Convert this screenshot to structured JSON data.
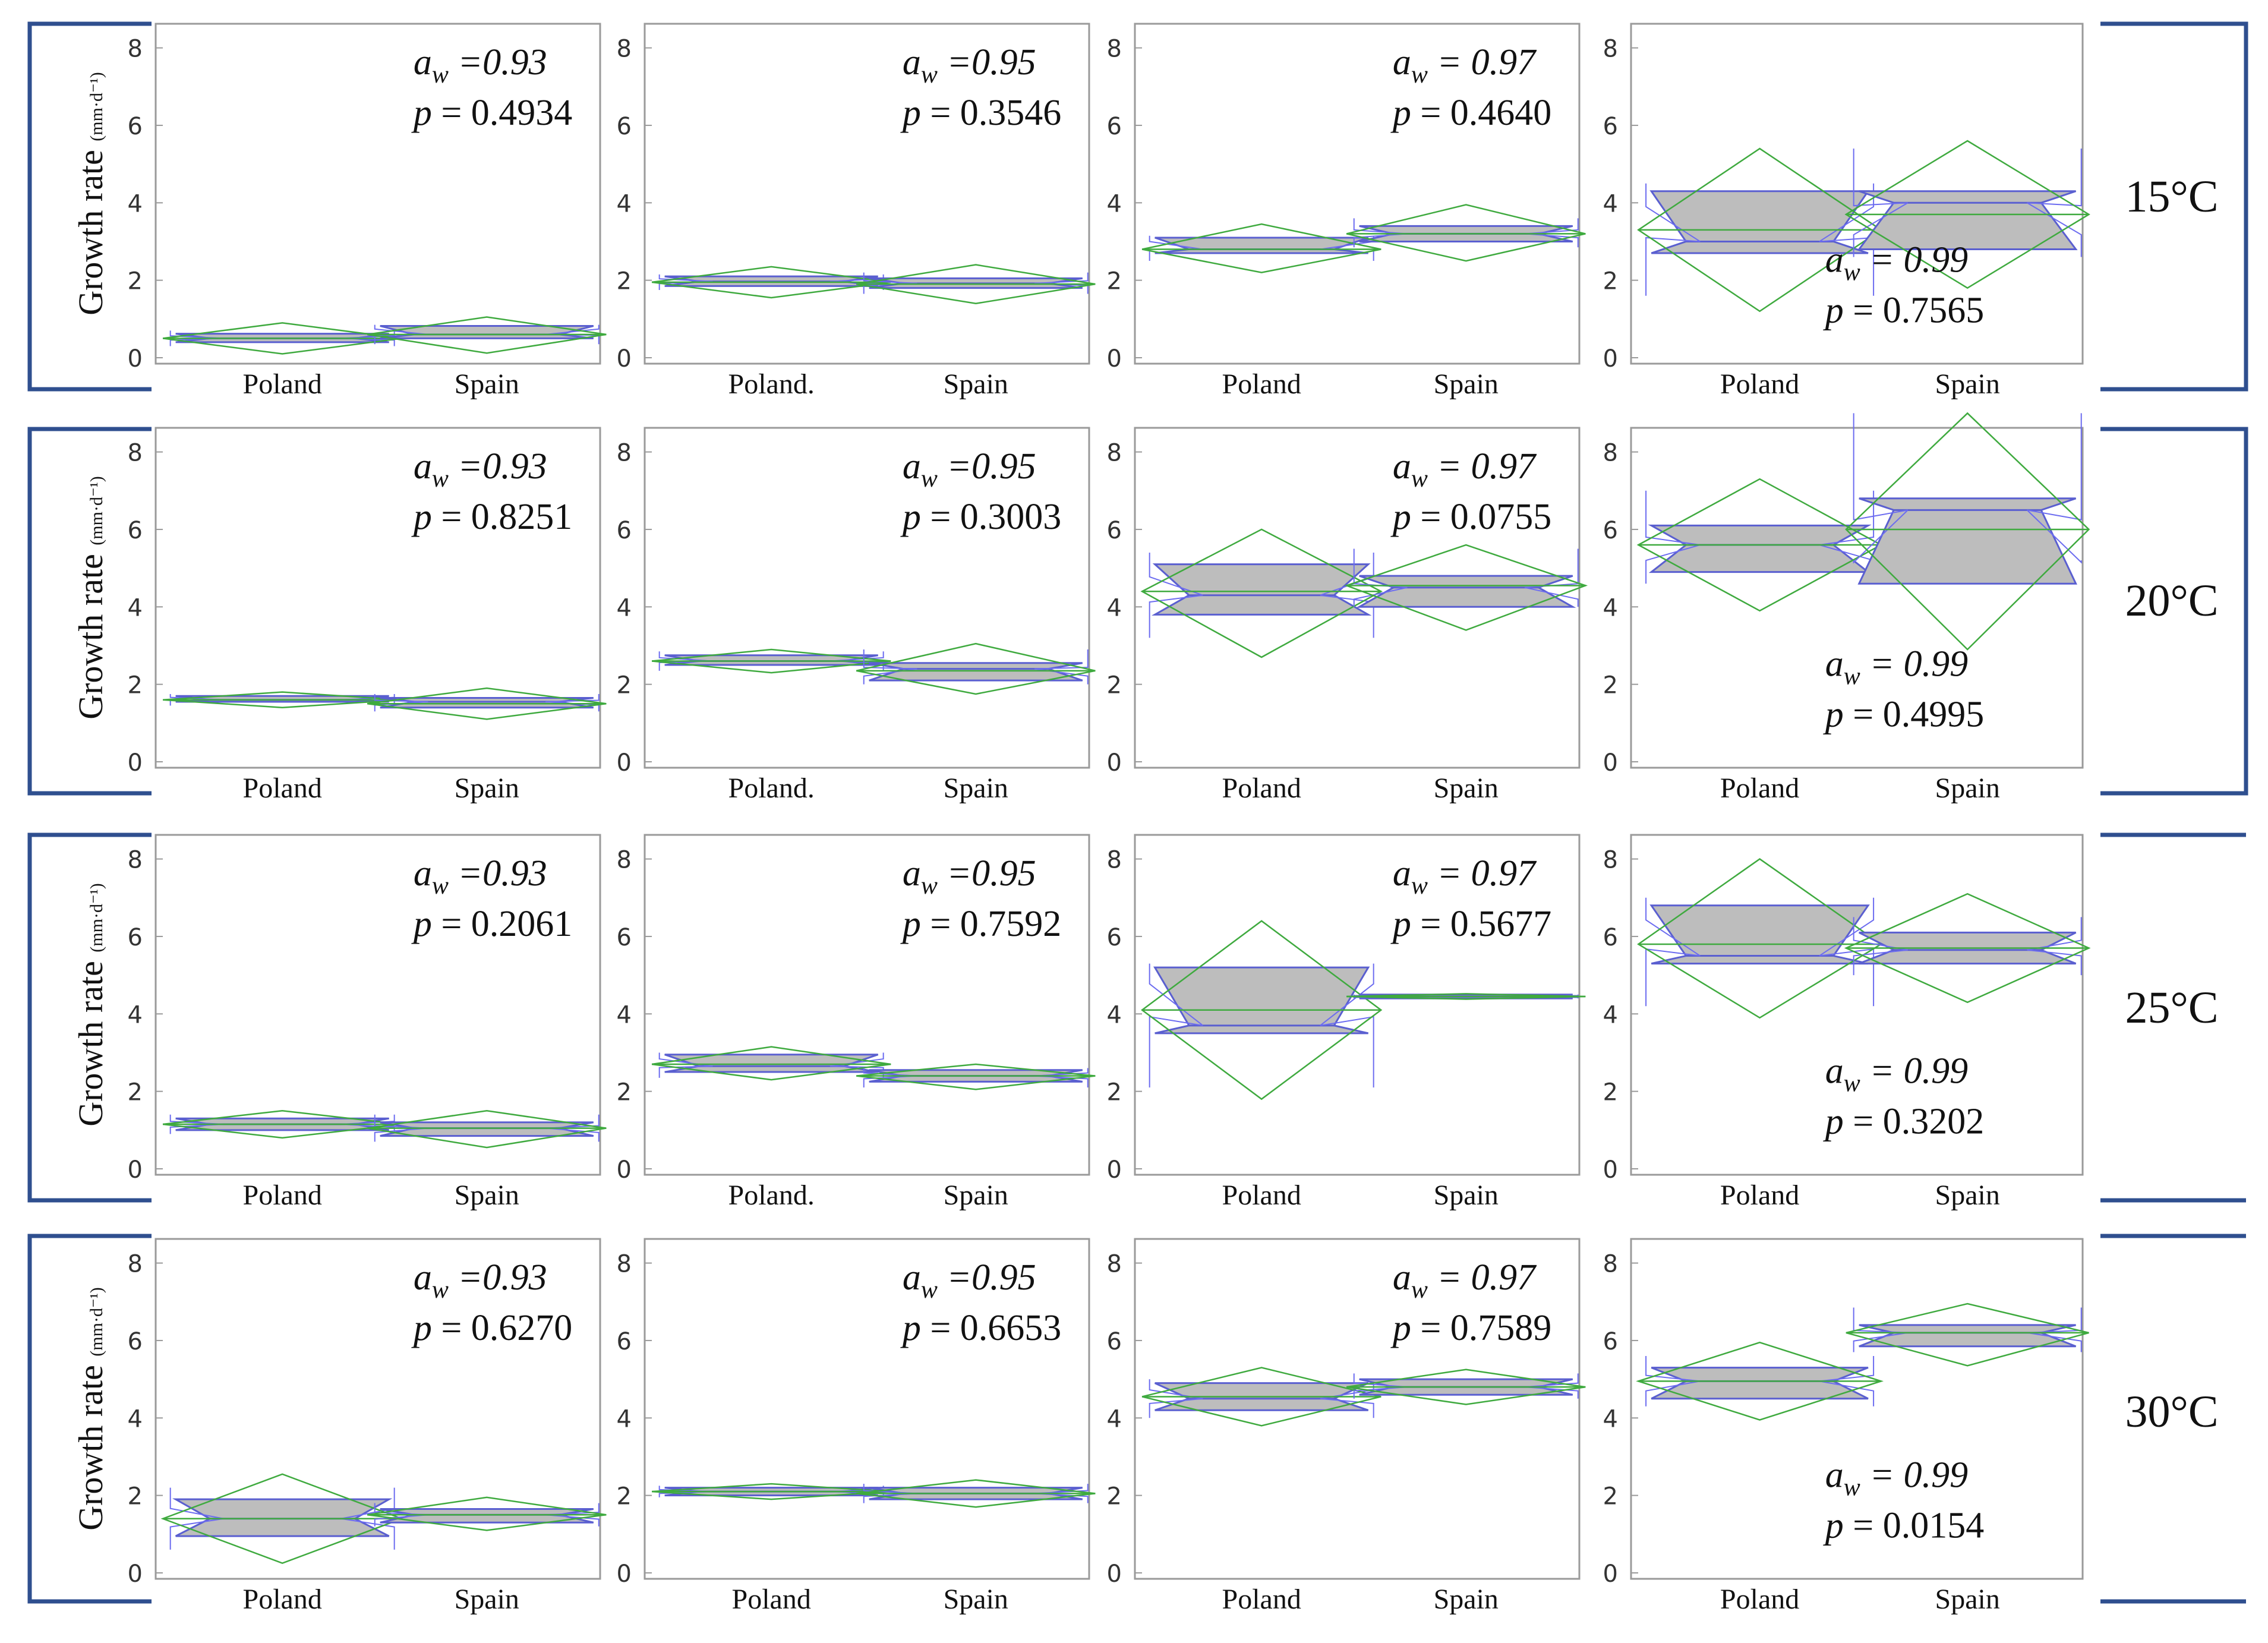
{
  "figure": {
    "y_axis_label": "Growth rate",
    "y_axis_unit": "(mm·d⁻¹)",
    "row_labels": [
      "15°C",
      "20°C",
      "25°C",
      "30°C"
    ],
    "colors": {
      "frame": "#2f4f8f",
      "panel_border": "#9a9a9a",
      "box_fill": "#bdbdbd",
      "box_stroke": "#5a5fd0",
      "diamond": "#3faa3f",
      "whisker": "#6c6cf0",
      "text": "#111111",
      "tick_text": "#333333"
    }
  },
  "chart_data": [
    {
      "type": "box",
      "row": "15°C",
      "aw": "0.93",
      "aw_text": "=0.93",
      "p_text": "= 0.4934",
      "categories": [
        "Poland",
        "Spain"
      ],
      "ylim": [
        0,
        8.5
      ],
      "yticks": [
        0,
        2,
        4,
        6,
        8
      ],
      "groups": [
        {
          "mean": 0.5,
          "q1": 0.4,
          "median": 0.5,
          "q3": 0.62,
          "ci": [
            0.1,
            0.9
          ],
          "whisker": [
            0.3,
            0.7
          ]
        },
        {
          "mean": 0.6,
          "q1": 0.5,
          "median": 0.6,
          "q3": 0.82,
          "ci": [
            0.12,
            1.05
          ],
          "whisker": [
            0.35,
            0.85
          ]
        }
      ]
    },
    {
      "type": "box",
      "row": "15°C",
      "aw": "0.95",
      "aw_text": "=0.95",
      "p_text": "= 0.3546",
      "categories": [
        "Poland.",
        "Spain"
      ],
      "ylim": [
        0,
        8.5
      ],
      "yticks": [
        0,
        2,
        4,
        6,
        8
      ],
      "groups": [
        {
          "mean": 1.95,
          "q1": 1.85,
          "median": 1.97,
          "q3": 2.1,
          "ci": [
            1.55,
            2.35
          ],
          "whisker": [
            1.75,
            2.15
          ]
        },
        {
          "mean": 1.9,
          "q1": 1.8,
          "median": 1.92,
          "q3": 2.05,
          "ci": [
            1.4,
            2.4
          ],
          "whisker": [
            1.65,
            2.2
          ]
        }
      ]
    },
    {
      "type": "box",
      "row": "15°C",
      "aw": "0.97",
      "aw_text": "= 0.97",
      "p_text": "= 0.4640",
      "categories": [
        "Poland",
        "Spain"
      ],
      "ylim": [
        0,
        8.5
      ],
      "yticks": [
        0,
        2,
        4,
        6,
        8
      ],
      "groups": [
        {
          "mean": 2.8,
          "q1": 2.7,
          "median": 2.8,
          "q3": 3.1,
          "ci": [
            2.2,
            3.45
          ],
          "whisker": [
            2.5,
            3.15
          ]
        },
        {
          "mean": 3.2,
          "q1": 3.0,
          "median": 3.2,
          "q3": 3.4,
          "ci": [
            2.5,
            3.95
          ],
          "whisker": [
            2.85,
            3.6
          ]
        }
      ]
    },
    {
      "type": "box",
      "row": "15°C",
      "aw": "0.99",
      "aw_text": "= 0.99",
      "p_text": "= 0.7565",
      "categories": [
        "Poland",
        "Spain"
      ],
      "ylim": [
        0,
        8.5
      ],
      "yticks": [
        0,
        2,
        4,
        6,
        8
      ],
      "groups": [
        {
          "mean": 3.3,
          "q1": 2.7,
          "median": 3.0,
          "q3": 4.3,
          "ci": [
            1.2,
            5.4
          ],
          "whisker": [
            1.6,
            4.5
          ]
        },
        {
          "mean": 3.7,
          "q1": 2.8,
          "median": 4.0,
          "q3": 4.3,
          "ci": [
            1.8,
            5.6
          ],
          "whisker": [
            2.6,
            5.4
          ]
        }
      ]
    },
    {
      "type": "box",
      "row": "20°C",
      "aw": "0.93",
      "aw_text": "=0.93",
      "p_text": "= 0.8251",
      "categories": [
        "Poland",
        "Spain"
      ],
      "ylim": [
        0,
        8.5
      ],
      "yticks": [
        0,
        2,
        4,
        6,
        8
      ],
      "groups": [
        {
          "mean": 1.6,
          "q1": 1.55,
          "median": 1.6,
          "q3": 1.7,
          "ci": [
            1.4,
            1.8
          ],
          "whisker": [
            1.45,
            1.75
          ]
        },
        {
          "mean": 1.5,
          "q1": 1.4,
          "median": 1.55,
          "q3": 1.65,
          "ci": [
            1.1,
            1.9
          ],
          "whisker": [
            1.3,
            1.75
          ]
        }
      ]
    },
    {
      "type": "box",
      "row": "20°C",
      "aw": "0.95",
      "aw_text": "=0.95",
      "p_text": "= 0.3003",
      "categories": [
        "Poland.",
        "Spain"
      ],
      "ylim": [
        0,
        8.5
      ],
      "yticks": [
        0,
        2,
        4,
        6,
        8
      ],
      "groups": [
        {
          "mean": 2.6,
          "q1": 2.5,
          "median": 2.6,
          "q3": 2.75,
          "ci": [
            2.3,
            2.9
          ],
          "whisker": [
            2.35,
            2.85
          ]
        },
        {
          "mean": 2.35,
          "q1": 2.1,
          "median": 2.4,
          "q3": 2.55,
          "ci": [
            1.75,
            3.05
          ],
          "whisker": [
            2.0,
            2.9
          ]
        }
      ]
    },
    {
      "type": "box",
      "row": "20°C",
      "aw": "0.97",
      "aw_text": "= 0.97",
      "p_text": "= 0.0755",
      "categories": [
        "Poland",
        "Spain"
      ],
      "ylim": [
        0,
        8.5
      ],
      "yticks": [
        0,
        2,
        4,
        6,
        8
      ],
      "groups": [
        {
          "mean": 4.4,
          "q1": 3.8,
          "median": 4.3,
          "q3": 5.1,
          "ci": [
            2.7,
            6.0
          ],
          "whisker": [
            3.2,
            5.4
          ]
        },
        {
          "mean": 4.55,
          "q1": 4.0,
          "median": 4.5,
          "q3": 4.8,
          "ci": [
            3.4,
            5.6
          ],
          "whisker": [
            4.0,
            5.5
          ]
        }
      ]
    },
    {
      "type": "box",
      "row": "20°C",
      "aw": "0.99",
      "aw_text": "= 0.99",
      "p_text": "= 0.4995",
      "categories": [
        "Poland",
        "Spain"
      ],
      "ylim": [
        0,
        8.5
      ],
      "yticks": [
        0,
        2,
        4,
        6,
        8
      ],
      "groups": [
        {
          "mean": 5.6,
          "q1": 4.9,
          "median": 5.6,
          "q3": 6.1,
          "ci": [
            3.9,
            7.3
          ],
          "whisker": [
            4.6,
            7.0
          ]
        },
        {
          "mean": 6.0,
          "q1": 4.6,
          "median": 6.5,
          "q3": 6.8,
          "ci": [
            2.9,
            9.0
          ],
          "whisker": [
            5.2,
            9.0
          ]
        }
      ]
    },
    {
      "type": "box",
      "row": "25°C",
      "aw": "0.93",
      "aw_text": "=0.93",
      "p_text": "= 0.2061",
      "categories": [
        "Poland",
        "Spain"
      ],
      "ylim": [
        0,
        8.5
      ],
      "yticks": [
        0,
        2,
        4,
        6,
        8
      ],
      "groups": [
        {
          "mean": 1.15,
          "q1": 1.0,
          "median": 1.15,
          "q3": 1.3,
          "ci": [
            0.8,
            1.5
          ],
          "whisker": [
            0.9,
            1.4
          ]
        },
        {
          "mean": 1.05,
          "q1": 0.85,
          "median": 1.05,
          "q3": 1.2,
          "ci": [
            0.55,
            1.5
          ],
          "whisker": [
            0.7,
            1.4
          ]
        }
      ]
    },
    {
      "type": "box",
      "row": "25°C",
      "aw": "0.95",
      "aw_text": "=0.95",
      "p_text": "= 0.7592",
      "categories": [
        "Poland.",
        "Spain"
      ],
      "ylim": [
        0,
        8.5
      ],
      "yticks": [
        0,
        2,
        4,
        6,
        8
      ],
      "groups": [
        {
          "mean": 2.7,
          "q1": 2.5,
          "median": 2.65,
          "q3": 2.95,
          "ci": [
            2.3,
            3.15
          ],
          "whisker": [
            2.35,
            3.0
          ]
        },
        {
          "mean": 2.4,
          "q1": 2.25,
          "median": 2.4,
          "q3": 2.55,
          "ci": [
            2.05,
            2.7
          ],
          "whisker": [
            2.1,
            2.6
          ]
        }
      ]
    },
    {
      "type": "box",
      "row": "25°C",
      "aw": "0.97",
      "aw_text": "= 0.97",
      "p_text": "= 0.5677",
      "categories": [
        "Poland",
        "Spain"
      ],
      "ylim": [
        0,
        8.5
      ],
      "yticks": [
        0,
        2,
        4,
        6,
        8
      ],
      "groups": [
        {
          "mean": 4.1,
          "q1": 3.5,
          "median": 3.7,
          "q3": 5.2,
          "ci": [
            1.8,
            6.4
          ],
          "whisker": [
            2.1,
            5.3
          ]
        },
        {
          "mean": 4.45,
          "q1": 4.4,
          "median": 4.45,
          "q3": 4.5,
          "ci": [
            4.38,
            4.52
          ],
          "whisker": [
            4.4,
            4.5
          ]
        }
      ]
    },
    {
      "type": "box",
      "row": "25°C",
      "aw": "0.99",
      "aw_text": "= 0.99",
      "p_text": "= 0.3202",
      "categories": [
        "Poland",
        "Spain"
      ],
      "ylim": [
        0,
        8.5
      ],
      "yticks": [
        0,
        2,
        4,
        6,
        8
      ],
      "groups": [
        {
          "mean": 5.8,
          "q1": 5.3,
          "median": 5.5,
          "q3": 6.8,
          "ci": [
            3.9,
            8.0
          ],
          "whisker": [
            4.2,
            7.0
          ]
        },
        {
          "mean": 5.7,
          "q1": 5.3,
          "median": 5.65,
          "q3": 6.1,
          "ci": [
            4.3,
            7.1
          ],
          "whisker": [
            5.0,
            6.5
          ]
        }
      ]
    },
    {
      "type": "box",
      "row": "30°C",
      "aw": "0.93",
      "aw_text": "=0.93",
      "p_text": "= 0.6270",
      "categories": [
        "Poland",
        "Spain"
      ],
      "ylim": [
        0,
        8.5
      ],
      "yticks": [
        0,
        2,
        4,
        6,
        8
      ],
      "groups": [
        {
          "mean": 1.4,
          "q1": 0.95,
          "median": 1.4,
          "q3": 1.9,
          "ci": [
            0.25,
            2.55
          ],
          "whisker": [
            0.6,
            2.2
          ]
        },
        {
          "mean": 1.5,
          "q1": 1.3,
          "median": 1.5,
          "q3": 1.65,
          "ci": [
            1.1,
            1.95
          ],
          "whisker": [
            1.2,
            1.8
          ]
        }
      ]
    },
    {
      "type": "box",
      "row": "30°C",
      "aw": "0.95",
      "aw_text": "=0.95",
      "p_text": "= 0.6653",
      "categories": [
        "Poland",
        "Spain"
      ],
      "ylim": [
        0,
        8.5
      ],
      "yticks": [
        0,
        2,
        4,
        6,
        8
      ],
      "groups": [
        {
          "mean": 2.1,
          "q1": 2.0,
          "median": 2.1,
          "q3": 2.2,
          "ci": [
            1.9,
            2.3
          ],
          "whisker": [
            1.95,
            2.25
          ]
        },
        {
          "mean": 2.05,
          "q1": 1.9,
          "median": 2.05,
          "q3": 2.2,
          "ci": [
            1.7,
            2.4
          ],
          "whisker": [
            1.8,
            2.3
          ]
        }
      ]
    },
    {
      "type": "box",
      "row": "30°C",
      "aw": "0.97",
      "aw_text": "= 0.97",
      "p_text": "= 0.7589",
      "categories": [
        "Poland",
        "Spain"
      ],
      "ylim": [
        0,
        8.5
      ],
      "yticks": [
        0,
        2,
        4,
        6,
        8
      ],
      "groups": [
        {
          "mean": 4.55,
          "q1": 4.2,
          "median": 4.5,
          "q3": 4.9,
          "ci": [
            3.8,
            5.3
          ],
          "whisker": [
            4.0,
            5.0
          ]
        },
        {
          "mean": 4.8,
          "q1": 4.6,
          "median": 4.8,
          "q3": 5.0,
          "ci": [
            4.35,
            5.25
          ],
          "whisker": [
            4.5,
            5.15
          ]
        }
      ]
    },
    {
      "type": "box",
      "row": "30°C",
      "aw": "0.99",
      "aw_text": "= 0.99",
      "p_text": "= 0.0154",
      "categories": [
        "Poland",
        "Spain"
      ],
      "ylim": [
        0,
        8.5
      ],
      "yticks": [
        0,
        2,
        4,
        6,
        8
      ],
      "groups": [
        {
          "mean": 4.95,
          "q1": 4.5,
          "median": 4.95,
          "q3": 5.3,
          "ci": [
            3.95,
            5.95
          ],
          "whisker": [
            4.3,
            5.6
          ]
        },
        {
          "mean": 6.2,
          "q1": 5.85,
          "median": 6.2,
          "q3": 6.4,
          "ci": [
            5.35,
            6.95
          ],
          "whisker": [
            5.7,
            6.85
          ]
        }
      ]
    }
  ]
}
